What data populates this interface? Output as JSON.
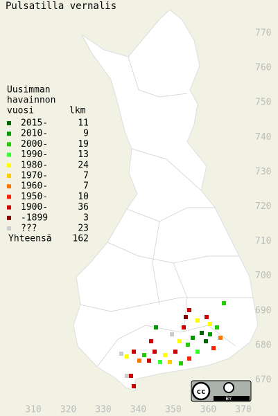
{
  "title": "Pulsatilla vernalis",
  "legend": {
    "heading": [
      "Uusimman",
      "havainnon",
      "vuosi"
    ],
    "count_heading": "lkm",
    "rows": [
      {
        "label": "2015-",
        "count": 11,
        "color": "#006600"
      },
      {
        "label": "2010-",
        "count": 9,
        "color": "#009900"
      },
      {
        "label": "2000-",
        "count": 19,
        "color": "#22cc00"
      },
      {
        "label": "1990-",
        "count": 13,
        "color": "#33ff33"
      },
      {
        "label": "1980-",
        "count": 24,
        "color": "#ffff00"
      },
      {
        "label": "1970-",
        "count": 7,
        "color": "#ffcc00"
      },
      {
        "label": "1960-",
        "count": 7,
        "color": "#ff7700"
      },
      {
        "label": "1950-",
        "count": 10,
        "color": "#ff2200"
      },
      {
        "label": "1900-",
        "count": 36,
        "color": "#cc0000"
      },
      {
        "label": "-1899",
        "count": 3,
        "color": "#880000"
      },
      {
        "label": "???",
        "count": 23,
        "color": "#cccccc"
      }
    ],
    "total_label": "Yhteensä",
    "total": 162
  },
  "x_axis": [
    "310",
    "320",
    "330",
    "340",
    "350",
    "360",
    "370"
  ],
  "y_axis": [
    "770",
    "760",
    "750",
    "740",
    "730",
    "720",
    "710",
    "700",
    "690",
    "680",
    "670"
  ],
  "license": {
    "icon": "cc",
    "by": "BY"
  }
}
